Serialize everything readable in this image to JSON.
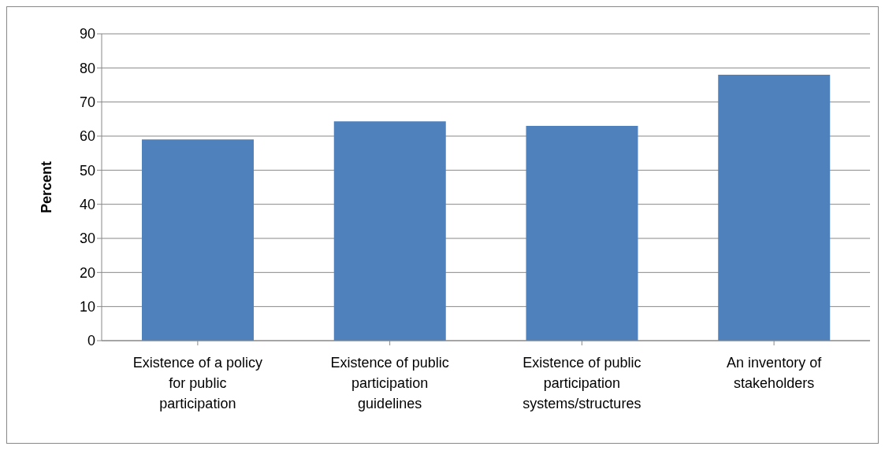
{
  "chart_data": {
    "type": "bar",
    "ylabel": "Percent",
    "categories": [
      "Existence of a policy\nfor public\nparticipation",
      "Existence of public\nparticipation\nguidelines",
      "Existence of public\nparticipation\nsystems/structures",
      "An inventory of\nstakeholders"
    ],
    "values": [
      59,
      64.3,
      63,
      78
    ],
    "color": "#4f81bd",
    "ylim": [
      0,
      90
    ],
    "yticks": [
      0,
      10,
      20,
      30,
      40,
      50,
      60,
      70,
      80,
      90
    ],
    "grid": "y",
    "legend": false
  }
}
